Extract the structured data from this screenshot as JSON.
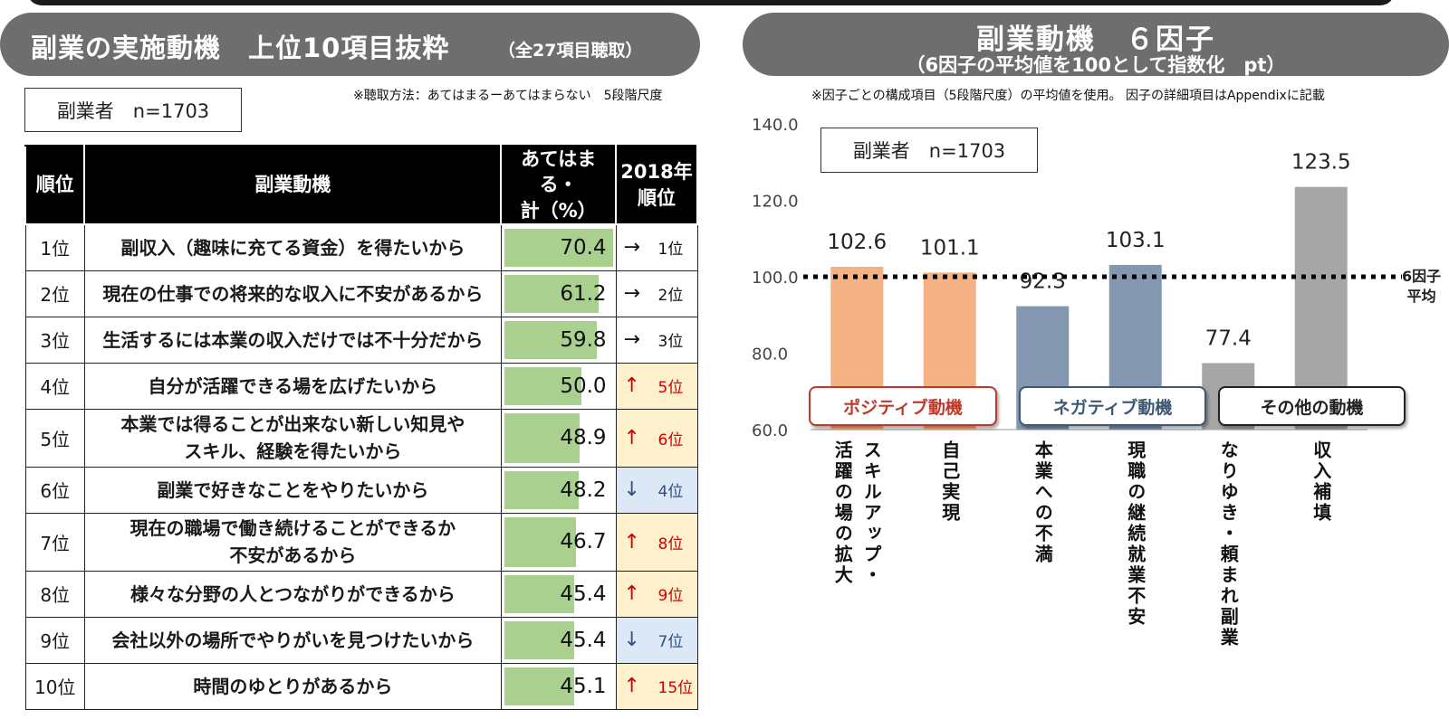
{
  "left": {
    "title": "副業の実施動機　上位10項目抜粋",
    "title_sub": "（全27項目聴取）",
    "sample": "副業者　n=1703",
    "note": "※聴取方法：あてはまるーあてはまらない　5段階尺度",
    "headers": {
      "rank": "順位",
      "motive": "副業動機",
      "pct_l1": "あてはまる・",
      "pct_l2": "計（%）",
      "prev_l1": "2018年",
      "prev_l2": "順位"
    },
    "rows": [
      {
        "rank": "1位",
        "motive": [
          "副収入（趣味に充てる資金）を得たいから"
        ],
        "pct": 70.4,
        "trend": "same",
        "arrow": "→",
        "prev": "1位"
      },
      {
        "rank": "2位",
        "motive": [
          "現在の仕事での将来的な収入に不安があるから"
        ],
        "pct": 61.2,
        "trend": "same",
        "arrow": "→",
        "prev": "2位"
      },
      {
        "rank": "3位",
        "motive": [
          "生活するには本業の収入だけでは不十分だから"
        ],
        "pct": 59.8,
        "trend": "same",
        "arrow": "→",
        "prev": "3位"
      },
      {
        "rank": "4位",
        "motive": [
          "自分が活躍できる場を広げたいから"
        ],
        "pct": 50.0,
        "trend": "up",
        "arrow": "↑",
        "prev": "5位"
      },
      {
        "rank": "5位",
        "motive": [
          "本業では得ることが出来ない新しい知見や",
          "スキル、経験を得たいから"
        ],
        "pct": 48.9,
        "trend": "up",
        "arrow": "↑",
        "prev": "6位"
      },
      {
        "rank": "6位",
        "motive": [
          "副業で好きなことをやりたいから"
        ],
        "pct": 48.2,
        "trend": "down",
        "arrow": "↓",
        "prev": "4位"
      },
      {
        "rank": "7位",
        "motive": [
          "現在の職場で働き続けることができるか",
          "不安があるから"
        ],
        "pct": 46.7,
        "trend": "up",
        "arrow": "↑",
        "prev": "8位"
      },
      {
        "rank": "8位",
        "motive": [
          "様々な分野の人とつながりができるから"
        ],
        "pct": 45.4,
        "trend": "up",
        "arrow": "↑",
        "prev": "9位"
      },
      {
        "rank": "9位",
        "motive": [
          "会社以外の場所でやりがいを見つけたいから"
        ],
        "pct": 45.4,
        "trend": "down",
        "arrow": "↓",
        "prev": "7位"
      },
      {
        "rank": "10位",
        "motive": [
          "時間のゆとりがあるから"
        ],
        "pct": 45.1,
        "trend": "up",
        "arrow": "↑",
        "prev": "15位"
      }
    ],
    "value_labels": [
      "70.4",
      "61.2",
      "59.8",
      "50.0",
      "48.9",
      "48.2",
      "46.7",
      "45.4",
      "45.4",
      "45.1"
    ]
  },
  "right": {
    "title": "副業動機　６因子",
    "title_sub": "（6因子の平均値を100として指数化　pt）",
    "note": "※因子ごとの構成項目（5段階尺度）の平均値を使用。 因子の詳細項目はAppendixに記載",
    "sample": "副業者　n=1703",
    "avg_label_l1": "6因子",
    "avg_label_l2": "平均",
    "groups": {
      "positive": "ポジティブ動機",
      "negative": "ネガティブ動機",
      "other": "その他の動機"
    }
  },
  "chart_data": {
    "type": "bar",
    "title": "副業動機　６因子",
    "categories": [
      "スキルアップ・活躍の場の拡大",
      "自己実現",
      "本業への不満",
      "現職の継続就業不安",
      "なりゆき・頼まれ副業",
      "収入補填"
    ],
    "category_label_columns": [
      [
        "スキルアップ・",
        "活躍の場の拡大"
      ],
      [
        "自己実現"
      ],
      [
        "本業への不満"
      ],
      [
        "現職の継続就業不安"
      ],
      [
        "なりゆき・頼まれ副業"
      ],
      [
        "収入補填"
      ]
    ],
    "values": [
      102.6,
      101.1,
      92.3,
      103.1,
      77.4,
      123.5
    ],
    "value_labels": [
      "102.6",
      "101.1",
      "92.3",
      "103.1",
      "77.4",
      "123.5"
    ],
    "bar_groups": [
      "positive",
      "positive",
      "negative",
      "negative",
      "other",
      "other"
    ],
    "colors": {
      "positive": "#f4b183",
      "negative": "#8497b0",
      "other": "#a6a6a6",
      "reference": "#000000"
    },
    "ylim": [
      60,
      140
    ],
    "yticks": [
      "60.0",
      "80.0",
      "100.0",
      "120.0",
      "140.0"
    ],
    "reference_line": 100,
    "grid": false
  }
}
